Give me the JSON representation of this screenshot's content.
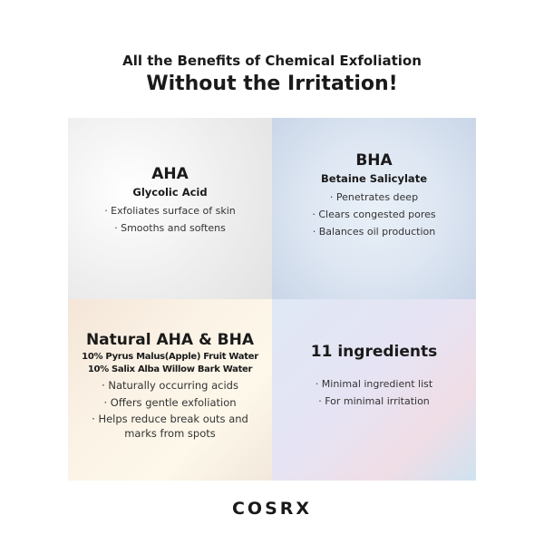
{
  "header": {
    "line1": "All the Benefits of Chemical Exfoliation",
    "line2": "Without the Irritation!"
  },
  "panels": [
    {
      "title": "AHA",
      "subtitle": "Glycolic Acid",
      "bullets": [
        "· Exfoliates surface of skin",
        "· Smooths and softens"
      ]
    },
    {
      "title": "BHA",
      "subtitle": "Betaine Salicylate",
      "bullets": [
        "· Penetrates deep",
        "· Clears congested pores",
        "· Balances oil production"
      ]
    },
    {
      "title": "Natural AHA & BHA",
      "subtitles": [
        "10% Pyrus Malus(Apple) Fruit Water",
        "10% Salix Alba Willow Bark Water"
      ],
      "bullets": [
        "· Naturally occurring acids",
        "· Offers gentle exfoliation",
        "· Helps reduce break outs and marks from spots"
      ]
    },
    {
      "title": "11 ingredients",
      "bullets": [
        "· Minimal ingredient list",
        "· For minimal irritation"
      ]
    }
  ],
  "brand": "COSRX"
}
